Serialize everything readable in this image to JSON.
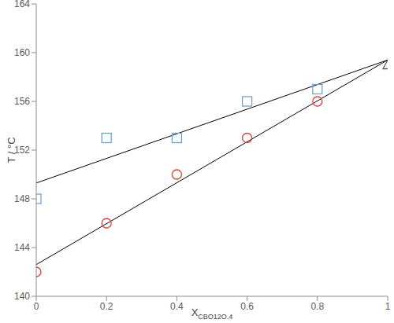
{
  "chart_data": {
    "type": "scatter",
    "x_label": "XCBO12O.4",
    "y_label": "T / °C",
    "xlim": [
      0,
      1
    ],
    "ylim": [
      140,
      164
    ],
    "xticks": [
      0,
      0.2,
      0.4,
      0.6,
      0.8,
      1
    ],
    "yticks": [
      140,
      144,
      148,
      152,
      156,
      160,
      164
    ],
    "series": [
      {
        "type": "scatter",
        "marker": "square",
        "color": "#6fa3d2",
        "x": [
          0,
          0.2,
          0.4,
          0.6,
          0.8
        ],
        "values": [
          148,
          153,
          153,
          156,
          157
        ]
      },
      {
        "type": "scatter",
        "marker": "circle",
        "color": "#e0413a",
        "x": [
          0,
          0.2,
          0.4,
          0.6,
          0.8
        ],
        "values": [
          142,
          146,
          150,
          153,
          156
        ]
      },
      {
        "type": "scatter",
        "marker": "triangle",
        "color": "#595959",
        "x": [
          1
        ],
        "values": [
          159
        ]
      },
      {
        "type": "line",
        "line_style": "solid",
        "color": "#000000",
        "x": [
          0,
          1
        ],
        "values": [
          149.3,
          159.4
        ]
      },
      {
        "type": "line",
        "line_style": "solid",
        "color": "#000000",
        "x": [
          0,
          1
        ],
        "values": [
          142.6,
          159.4
        ]
      }
    ]
  }
}
